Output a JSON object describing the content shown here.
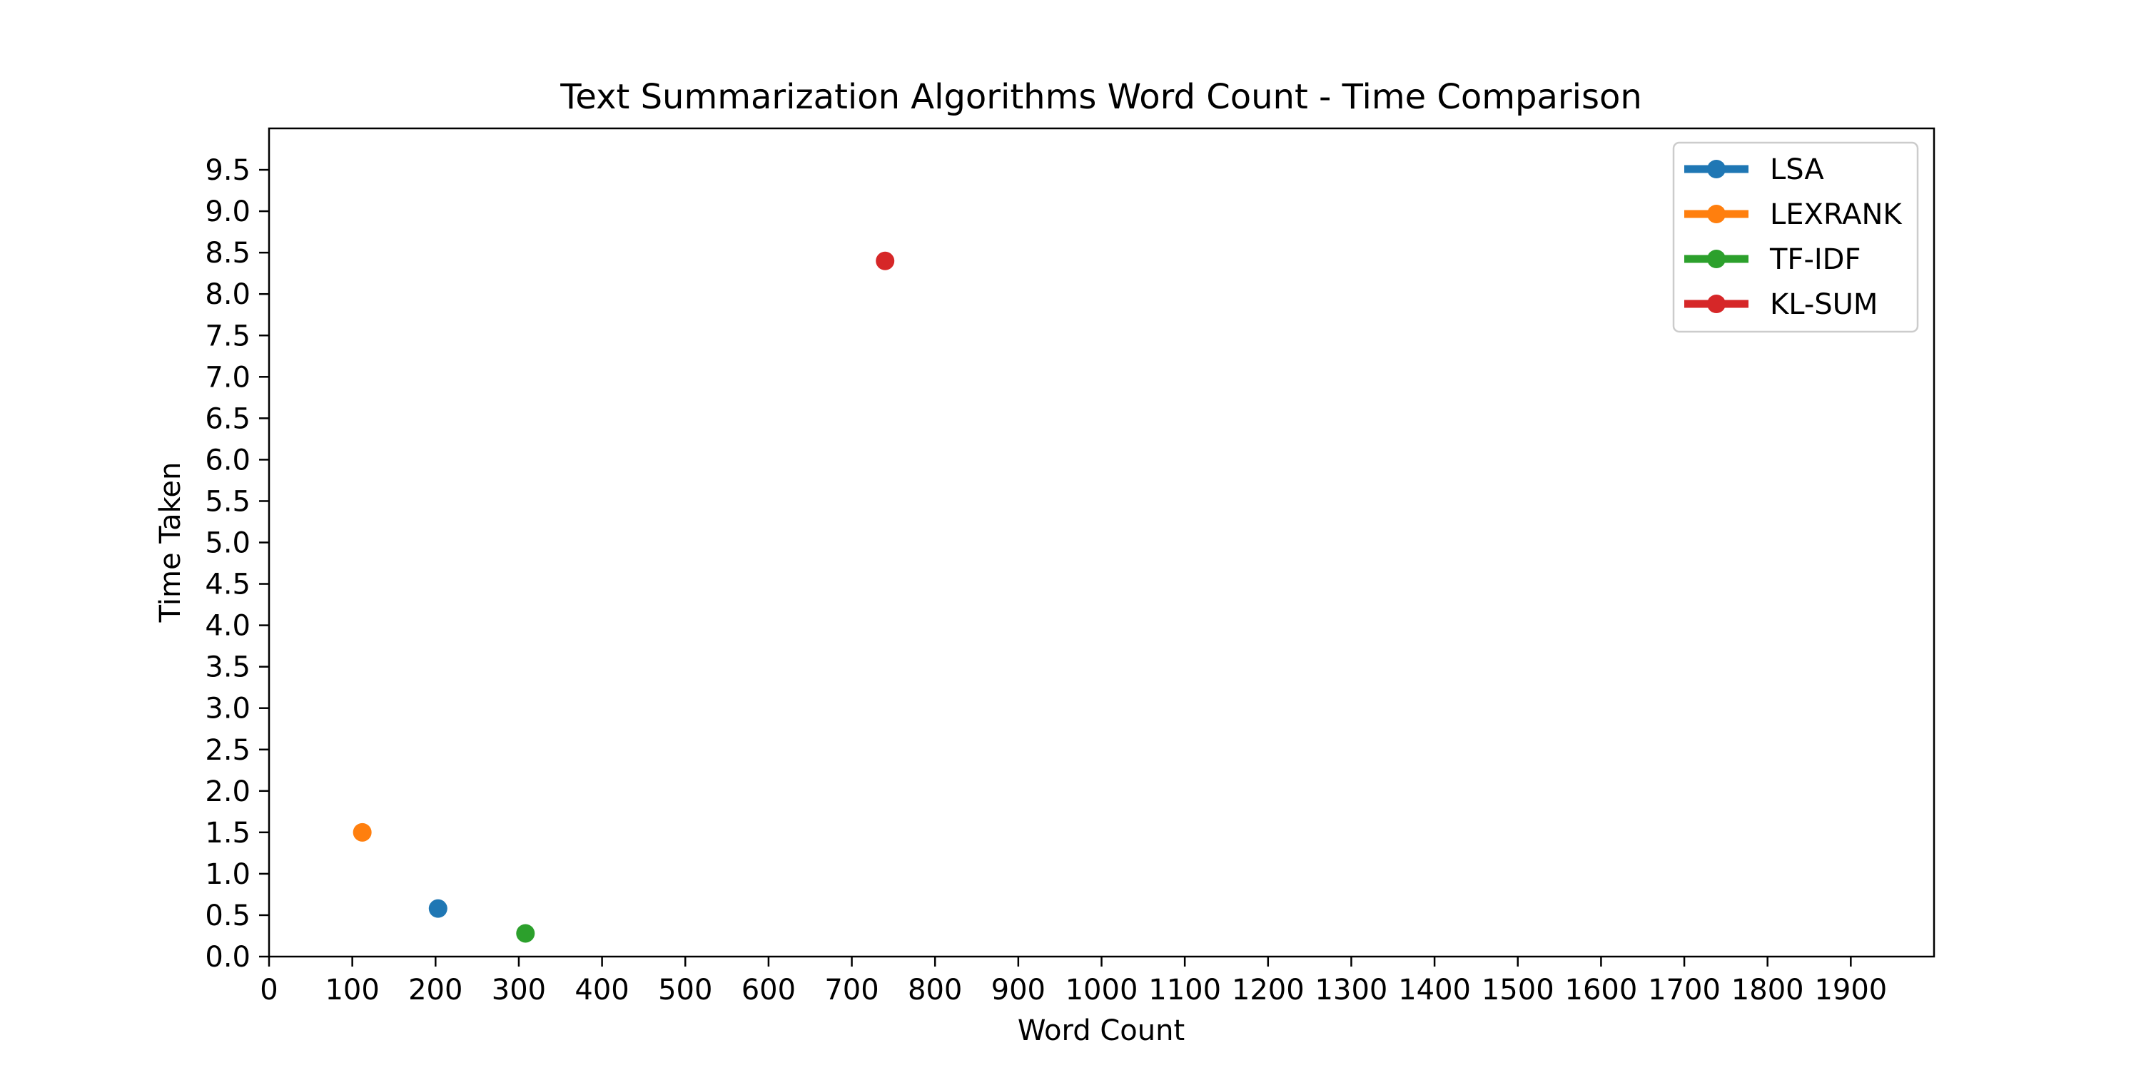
{
  "chart_data": {
    "type": "scatter",
    "title": "Text Summarization Algorithms Word Count - Time Comparison",
    "xlabel": "Word Count",
    "ylabel": "Time Taken",
    "xlim": [
      0,
      2000
    ],
    "ylim": [
      0,
      10
    ],
    "xticks": [
      0,
      100,
      200,
      300,
      400,
      500,
      600,
      700,
      800,
      900,
      1000,
      1100,
      1200,
      1300,
      1400,
      1500,
      1600,
      1700,
      1800,
      1900
    ],
    "yticks": [
      0.0,
      0.5,
      1.0,
      1.5,
      2.0,
      2.5,
      3.0,
      3.5,
      4.0,
      4.5,
      5.0,
      5.5,
      6.0,
      6.5,
      7.0,
      7.5,
      8.0,
      8.5,
      9.0,
      9.5
    ],
    "grid": false,
    "legend_position": "top-right",
    "series": [
      {
        "name": "LSA",
        "color": "#1f77b4",
        "x": [
          203
        ],
        "y": [
          0.58
        ]
      },
      {
        "name": "LEXRANK",
        "color": "#ff7f0e",
        "x": [
          112
        ],
        "y": [
          1.5
        ]
      },
      {
        "name": "TF-IDF",
        "color": "#2ca02c",
        "x": [
          308
        ],
        "y": [
          0.28
        ]
      },
      {
        "name": "KL-SUM",
        "color": "#d62728",
        "x": [
          740
        ],
        "y": [
          8.4
        ]
      }
    ]
  }
}
